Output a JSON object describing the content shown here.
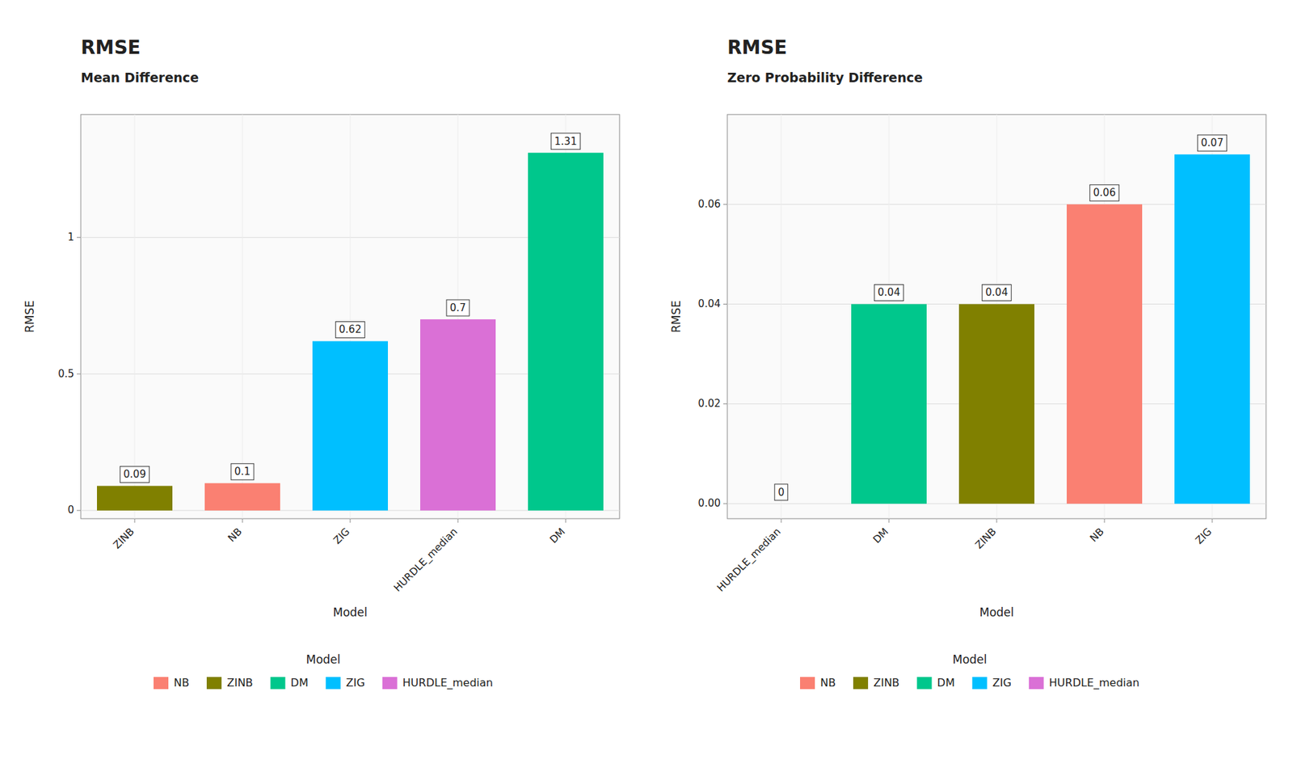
{
  "chart_data": [
    {
      "type": "bar",
      "title": "RMSE",
      "subtitle": "Mean Difference",
      "categories": [
        "ZINB",
        "NB",
        "ZIG",
        "HURDLE_median",
        "DM"
      ],
      "values": [
        0.09,
        0.1,
        0.62,
        0.7,
        1.31
      ],
      "colors": [
        "#808000",
        "#FA8072",
        "#00BFFF",
        "#DA70D6",
        "#00C78C"
      ],
      "x_label": "Model",
      "y_label": "RMSE",
      "ylim": [
        -0.03,
        1.45
      ],
      "yticks": [
        0,
        0.5,
        1
      ],
      "grid": true,
      "data_labels": true,
      "legend": "bottom",
      "legend_title": "Model",
      "legend_labels": [
        "NB",
        "ZINB",
        "DM",
        "ZIG",
        "HURDLE_median"
      ],
      "legend_colors": [
        "#FA8072",
        "#808000",
        "#00C78C",
        "#00BFFF",
        "#DA70D6"
      ]
    },
    {
      "type": "bar",
      "title": "RMSE",
      "subtitle": "Zero Probability Difference",
      "categories": [
        "HURDLE_median",
        "DM",
        "ZINB",
        "NB",
        "ZIG"
      ],
      "values": [
        0.0,
        0.04,
        0.04,
        0.06,
        0.07
      ],
      "colors": [
        "#DA70D6",
        "#00C78C",
        "#808000",
        "#FA8072",
        "#00BFFF"
      ],
      "x_label": "Model",
      "y_label": "RMSE",
      "ylim": [
        -0.003,
        0.078
      ],
      "yticks": [
        {
          "value": 0.0,
          "label": "0.00"
        },
        {
          "value": 0.02,
          "label": "0.02"
        },
        {
          "value": 0.04,
          "label": "0.04"
        },
        {
          "value": 0.06,
          "label": "0.06"
        }
      ],
      "grid": true,
      "data_labels": true,
      "legend": "bottom",
      "legend_title": "Model",
      "legend_labels": [
        "NB",
        "ZINB",
        "DM",
        "ZIG",
        "HURDLE_median"
      ],
      "legend_colors": [
        "#FA8072",
        "#808000",
        "#00C78C",
        "#00BFFF",
        "#DA70D6"
      ]
    }
  ]
}
